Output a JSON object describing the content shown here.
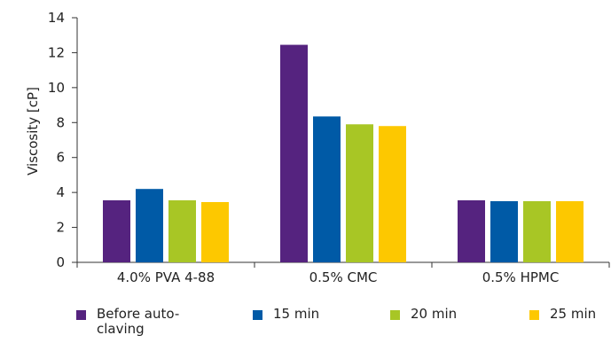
{
  "chart_data": {
    "type": "bar",
    "ylabel": "Viscosity [cP]",
    "xlabel": "",
    "ylim": [
      0,
      14
    ],
    "yticks": [
      0,
      2,
      4,
      6,
      8,
      10,
      12,
      14
    ],
    "categories": [
      "4.0% PVA 4-88",
      "0.5% CMC",
      "0.5% HPMC"
    ],
    "series": [
      {
        "name": "Before auto-\nclaving",
        "color": "#55237f",
        "values": [
          3.55,
          12.45,
          3.55
        ]
      },
      {
        "name": "15 min",
        "color": "#005aa6",
        "values": [
          4.2,
          8.35,
          3.5
        ]
      },
      {
        "name": "20 min",
        "color": "#a8c625",
        "values": [
          3.55,
          7.9,
          3.5
        ]
      },
      {
        "name": "25 min",
        "color": "#fdc800",
        "values": [
          3.45,
          7.8,
          3.5
        ]
      }
    ],
    "legend": "bottom",
    "grid": false
  }
}
